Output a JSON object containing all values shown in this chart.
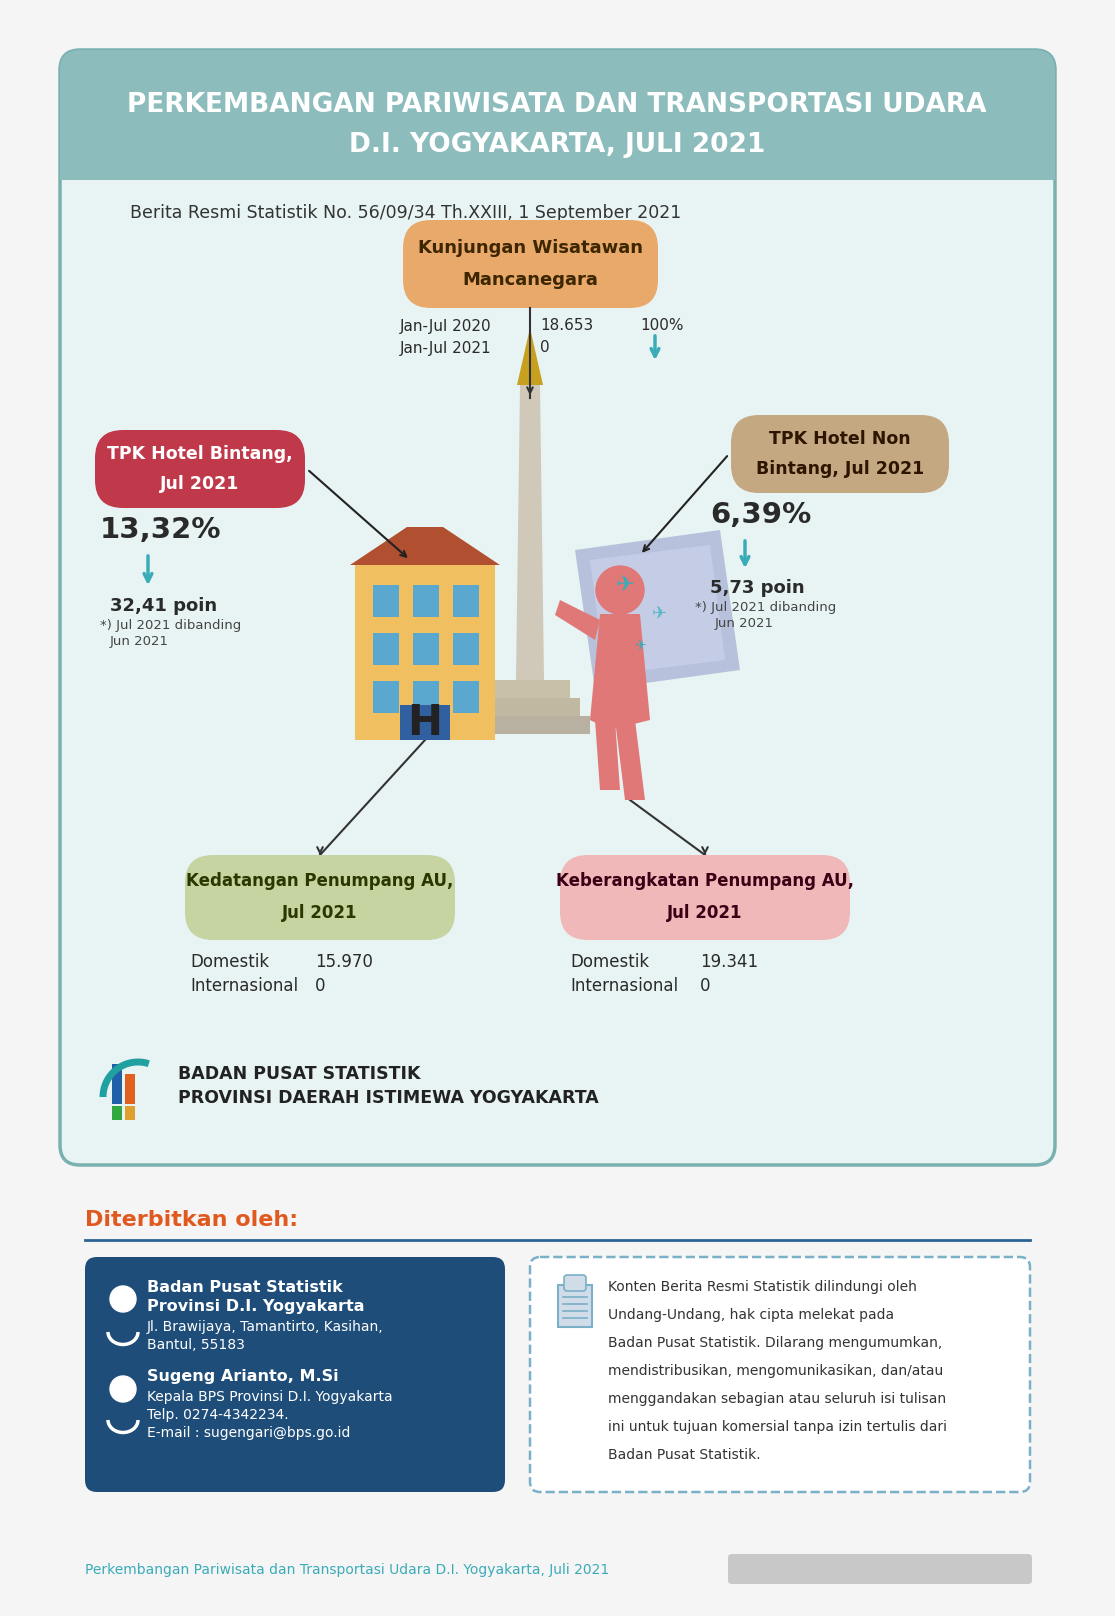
{
  "title_line1": "PERKEMBANGAN PARIWISATA DAN TRANSPORTASI UDARA",
  "title_line2": "D.I. YOGYAKARTA, JULI 2021",
  "subtitle": "Berita Resmi Statistik No. 56/09/34 Th.XXIII, 1 September 2021",
  "bg_outer": "#f5f5f5",
  "bg_card": "#e8f4f4",
  "bg_header": "#8dbcbc",
  "title_color": "#ffffff",
  "subtitle_color": "#333333",
  "card_border": "#7ab0b0",
  "box_wisatawan_color": "#e8a96a",
  "wisatawan_row1_label": "Jan-Jul 2020",
  "wisatawan_row1_val": "18.653",
  "wisatawan_row2_label": "Jan-Jul 2021",
  "wisatawan_row2_val": "0",
  "wisatawan_pct": "100%",
  "wisatawan_arrow_color": "#3aacb8",
  "box_bintang_color": "#c0394b",
  "bintang_pct": "13,32%",
  "bintang_arrow_color": "#3aacb8",
  "bintang_poin": "32,41 poin",
  "box_nonbintang_color": "#c4a882",
  "nonbintang_pct": "6,39%",
  "nonbintang_arrow_color": "#3aacb8",
  "nonbintang_poin": "5,73 poin",
  "box_kedatangan_color": "#c5d4a0",
  "kedatangan_dom_label": "Domestik",
  "kedatangan_dom_val": "15.970",
  "kedatangan_int_label": "Internasional",
  "kedatangan_int_val": "0",
  "box_keberangkatan_color": "#f0b8b8",
  "keberangkatan_dom_label": "Domestik",
  "keberangkatan_dom_val": "19.341",
  "keberangkatan_int_label": "Internasional",
  "keberangkatan_int_val": "0",
  "bps_line1": "BADAN PUSAT STATISTIK",
  "bps_line2": "PROVINSI DAERAH ISTIMEWA YOGYAKARTA",
  "diterbitkan_label": "Diterbitkan oleh:",
  "diterbitkan_color": "#e05a20",
  "info_box_bg": "#1e4d7a",
  "info_name1": "Badan Pusat Statistik",
  "info_name2": "Provinsi D.I. Yogyakarta",
  "info_addr1": "Jl. Brawijaya, Tamantirto, Kasihan,",
  "info_addr2": "Bantul, 55183",
  "info_name3": "Sugeng Arianto, M.Si",
  "info_title3": "Kepala BPS Provinsi D.I. Yogyakarta",
  "info_telp": "Telp. 0274-4342234.",
  "info_email": "E-mail : sugengari@bps.go.id",
  "footer_text": "Perkembangan Pariwisata dan Transportasi Udara D.I. Yogyakarta, Juli 2021",
  "footer_color": "#3aacb8",
  "dark_text": "#2a2a2a",
  "mid_text": "#444444",
  "line_color": "#2a6496",
  "line_hr_color": "#2a6496"
}
